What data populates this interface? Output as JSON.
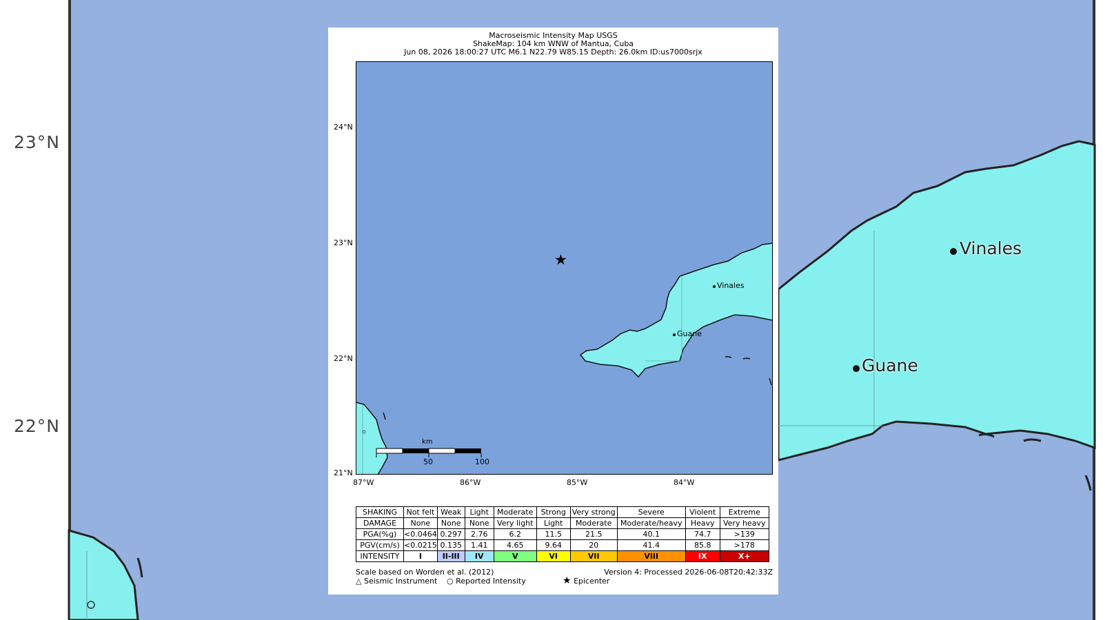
{
  "background": {
    "lat_labels": [
      "23°N",
      "22°N"
    ],
    "cities": [
      "Vinales",
      "Guane"
    ]
  },
  "map": {
    "title_lines": [
      "Macroseismic Intensity Map USGS",
      "ShakeMap: 104 km WNW of Mantua, Cuba",
      "Jun 08, 2026 18:00:27 UTC M6.1 N22.79 W85.15 Depth: 26.0km ID:us7000srjx"
    ],
    "lat_ticks": [
      "24°N",
      "23°N",
      "22°N",
      "21°N"
    ],
    "lon_ticks": [
      "87°W",
      "86°W",
      "85°W",
      "84°W"
    ],
    "cities": [
      "Vinales",
      "Guane"
    ],
    "scale_bar": {
      "unit": "km",
      "labels": [
        "50",
        "100"
      ]
    },
    "epicenter_symbol": "★"
  },
  "legend": {
    "rows": [
      {
        "label": "SHAKING",
        "cells": [
          "Not felt",
          "Weak",
          "Light",
          "Moderate",
          "Strong",
          "Very strong",
          "Severe",
          "Violent",
          "Extreme"
        ]
      },
      {
        "label": "DAMAGE",
        "cells": [
          "None",
          "None",
          "None",
          "Very light",
          "Light",
          "Moderate",
          "Moderate/heavy",
          "Heavy",
          "Very heavy"
        ]
      },
      {
        "label": "PGA(%g)",
        "cells": [
          "<0.0464",
          "0.297",
          "2.76",
          "6.2",
          "11.5",
          "21.5",
          "40.1",
          "74.7",
          ">139"
        ]
      },
      {
        "label": "PGV(cm/s)",
        "cells": [
          "<0.0215",
          "0.135",
          "1.41",
          "4.65",
          "9.64",
          "20",
          "41.4",
          "85.8",
          ">178"
        ]
      }
    ],
    "intensity_label": "INTENSITY",
    "intensity": [
      "I",
      "II-III",
      "IV",
      "V",
      "VI",
      "VII",
      "VIII",
      "IX",
      "X+"
    ],
    "intensity_colors": [
      "#ffffff",
      "#bfccff",
      "#a0e6ff",
      "#80ff80",
      "#ffff00",
      "#ffc800",
      "#ff9100",
      "#ff0000",
      "#c80000"
    ]
  },
  "footer": {
    "scale_note": "Scale based on Worden et al. (2012)",
    "version": "Version 4: Processed 2026-06-08T20:42:33Z",
    "seismic": "Seismic Instrument",
    "reported": "Reported Intensity",
    "epicenter": "Epicenter"
  }
}
